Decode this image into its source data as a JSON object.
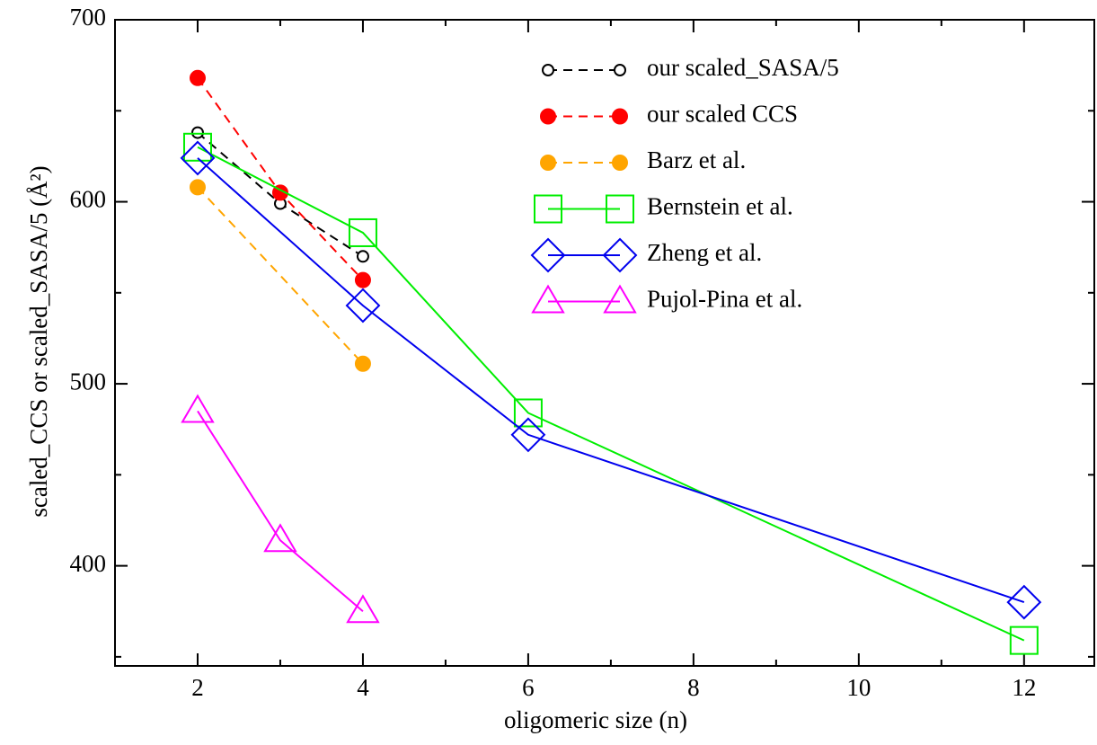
{
  "chart_data": {
    "type": "line",
    "x_label": "oligomeric size (n)",
    "y_label": "scaled_CCS or scaled_SASA/5 (Å²)",
    "xlim": [
      1,
      12.85
    ],
    "ylim": [
      345,
      700
    ],
    "xticks": [
      2,
      4,
      6,
      8,
      10,
      12
    ],
    "yticks": [
      400,
      500,
      600,
      700
    ],
    "x_minor_ticks": [
      3,
      5,
      7,
      9,
      11
    ],
    "y_minor_ticks": [
      350,
      450,
      550,
      650
    ],
    "legend": "top-right",
    "series": [
      {
        "name": "our scaled_SASA/5",
        "color": "#000000",
        "marker": "open-circle",
        "line_style": "dashed",
        "x": [
          2,
          3,
          4
        ],
        "values": [
          638,
          599,
          570
        ]
      },
      {
        "name": "our scaled CCS",
        "color": "#ff0000",
        "marker": "filled-circle",
        "line_style": "dashed",
        "x": [
          2,
          3,
          4
        ],
        "values": [
          668,
          605,
          557
        ]
      },
      {
        "name": "Barz et al.",
        "color": "#ffa500",
        "marker": "filled-circle",
        "line_style": "dashed",
        "x": [
          2,
          4
        ],
        "values": [
          608,
          511
        ]
      },
      {
        "name": "Bernstein et al.",
        "color": "#00ee00",
        "marker": "square",
        "line_style": "solid",
        "x": [
          2,
          4,
          6,
          12
        ],
        "values": [
          630,
          583,
          484,
          359
        ]
      },
      {
        "name": "Zheng et al.",
        "color": "#0000ee",
        "marker": "diamond",
        "line_style": "solid",
        "x": [
          2,
          4,
          6,
          12
        ],
        "values": [
          624,
          543,
          472,
          380
        ]
      },
      {
        "name": "Pujol-Pina et al.",
        "color": "#ff00ff",
        "marker": "triangle",
        "line_style": "solid",
        "x": [
          2,
          3,
          4
        ],
        "values": [
          485,
          414,
          375
        ]
      }
    ]
  }
}
